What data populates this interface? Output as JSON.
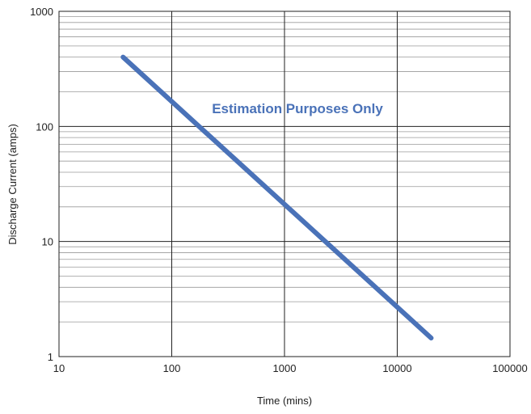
{
  "chart_data": {
    "type": "line",
    "xlabel": "Time (mins)",
    "ylabel": "Discharge Current (amps)",
    "x_scale": "log",
    "y_scale": "log",
    "xlim": [
      10,
      100000
    ],
    "ylim": [
      1,
      1000
    ],
    "x_ticks": [
      "10",
      "100",
      "1000",
      "10000",
      "100000"
    ],
    "y_ticks": [
      "1",
      "10",
      "100",
      "1000"
    ],
    "grid": true,
    "annotation": "Estimation Purposes Only",
    "series": [
      {
        "color": "#4a72b8",
        "points": [
          {
            "x": 37,
            "y": 400
          },
          {
            "x": 20000,
            "y": 1.45
          }
        ]
      }
    ]
  }
}
